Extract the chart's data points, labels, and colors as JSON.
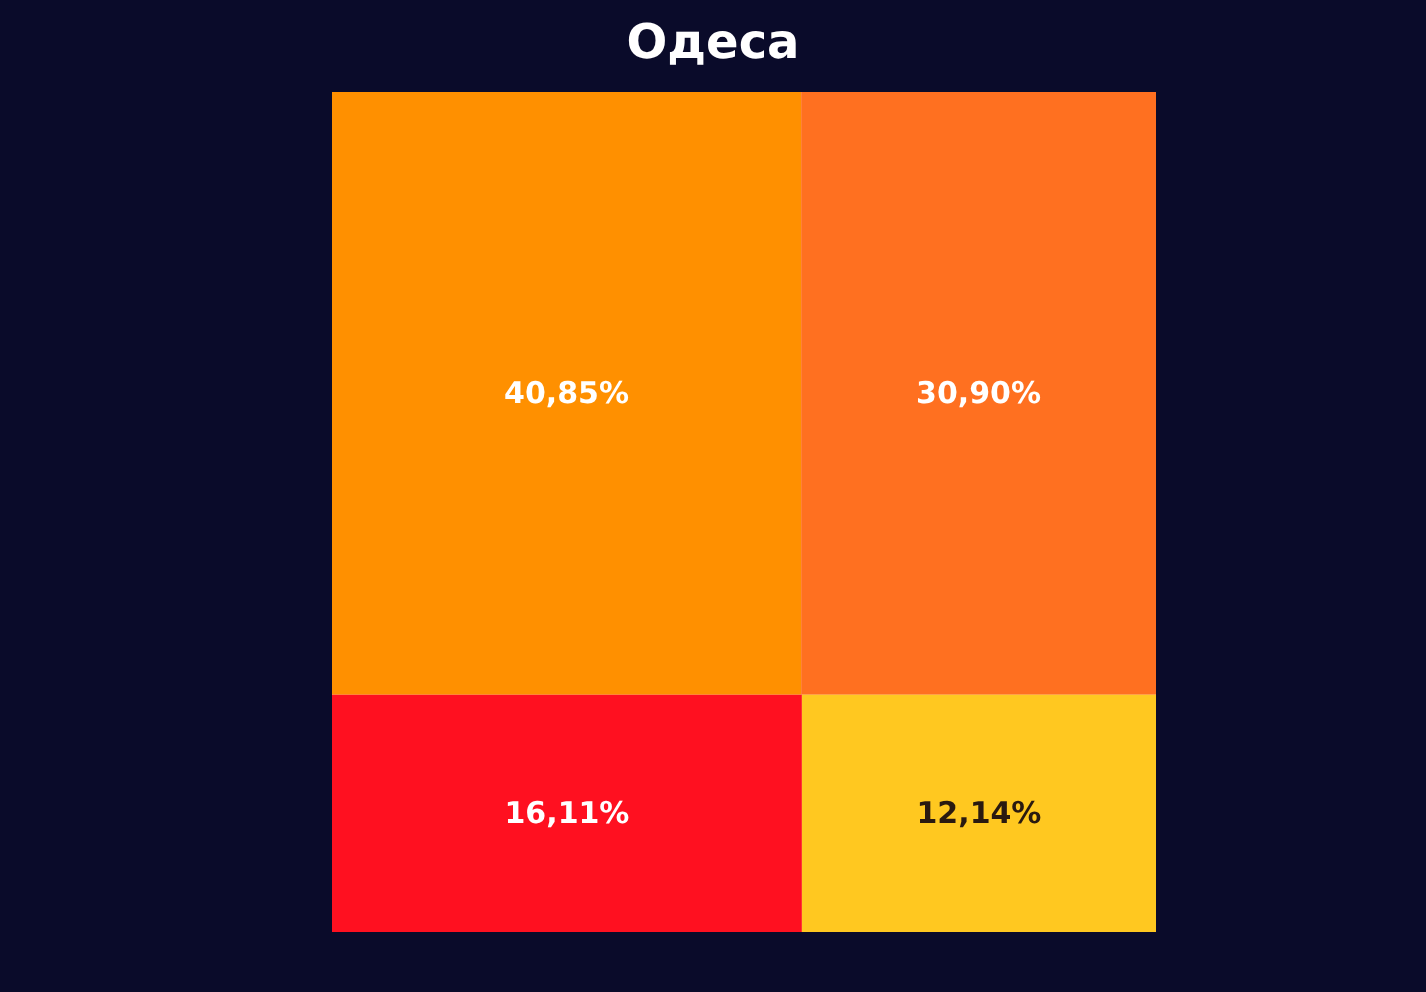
{
  "chart_data": {
    "type": "other",
    "title": "Одеса",
    "categories": [
      null,
      null,
      null,
      null
    ],
    "values": [
      40.85,
      30.9,
      16.11,
      12.14
    ],
    "value_labels": [
      "40,85%",
      "30,90%",
      "16,11%",
      "12,14%"
    ],
    "colors": [
      "#ff9000",
      "#ff7020",
      "#ff1020",
      "#ffc820"
    ]
  }
}
